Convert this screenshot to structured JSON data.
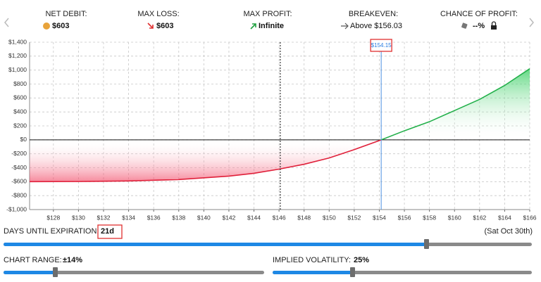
{
  "stats": [
    {
      "label": "NET DEBIT:",
      "value": "$603"
    },
    {
      "label": "MAX LOSS:",
      "value": "$603"
    },
    {
      "label": "MAX PROFIT:",
      "value": "Infinite"
    },
    {
      "label": "BREAKEVEN:",
      "value": "Above $156.03"
    },
    {
      "label": "CHANCE OF PROFIT:",
      "value": "--%"
    }
  ],
  "chart_data": {
    "type": "line",
    "x": [
      126.1,
      130,
      134,
      138,
      142,
      144,
      146,
      148,
      150,
      152,
      154,
      154.15,
      156,
      158,
      160,
      162,
      164,
      166
    ],
    "values": [
      -600,
      -598,
      -590,
      -570,
      -520,
      -480,
      -420,
      -350,
      -260,
      -140,
      -10,
      0,
      130,
      260,
      420,
      580,
      780,
      1020
    ],
    "xlim": [
      126.1,
      166
    ],
    "ylim": [
      -1000,
      1400
    ],
    "xticks": [
      {
        "value": 128,
        "label": "$128"
      },
      {
        "value": 130,
        "label": "$130"
      },
      {
        "value": 132,
        "label": "$132"
      },
      {
        "value": 134,
        "label": "$134"
      },
      {
        "value": 136,
        "label": "$136"
      },
      {
        "value": 138,
        "label": "$138"
      },
      {
        "value": 140,
        "label": "$140"
      },
      {
        "value": 142,
        "label": "$142"
      },
      {
        "value": 144,
        "label": "$144"
      },
      {
        "value": 146,
        "label": "$146"
      },
      {
        "value": 148,
        "label": "$148"
      },
      {
        "value": 150,
        "label": "$150"
      },
      {
        "value": 152,
        "label": "$152"
      },
      {
        "value": 154,
        "label": "$154"
      },
      {
        "value": 156,
        "label": "$156"
      },
      {
        "value": 158,
        "label": "$158"
      },
      {
        "value": 160,
        "label": "$160"
      },
      {
        "value": 162,
        "label": "$162"
      },
      {
        "value": 164,
        "label": "$164"
      },
      {
        "value": 166,
        "label": "$166"
      }
    ],
    "yticks": [
      {
        "value": -1000,
        "label": "-$1,000"
      },
      {
        "value": -800,
        "label": "-$800"
      },
      {
        "value": -600,
        "label": "-$600"
      },
      {
        "value": -400,
        "label": "-$400"
      },
      {
        "value": -200,
        "label": "-$200"
      },
      {
        "value": 0,
        "label": "$0"
      },
      {
        "value": 200,
        "label": "$200"
      },
      {
        "value": 400,
        "label": "$400"
      },
      {
        "value": 600,
        "label": "$600"
      },
      {
        "value": 800,
        "label": "$800"
      },
      {
        "value": 1000,
        "label": "$1,000"
      },
      {
        "value": 1200,
        "label": "$1,200"
      },
      {
        "value": 1400,
        "label": "$1,400"
      }
    ],
    "grid": true,
    "current_price": 146.1,
    "price_marker": {
      "value": 154.15,
      "label": "$154.15"
    }
  },
  "controls": {
    "days_label": "DAYS UNTIL EXPIRATION:",
    "days_value": "21d",
    "date": "(Sat Oct 30th)",
    "range_label": "CHART RANGE:",
    "range_value": "±14%",
    "iv_label": "IMPLIED VOLATILITY:",
    "iv_value": "25%"
  }
}
